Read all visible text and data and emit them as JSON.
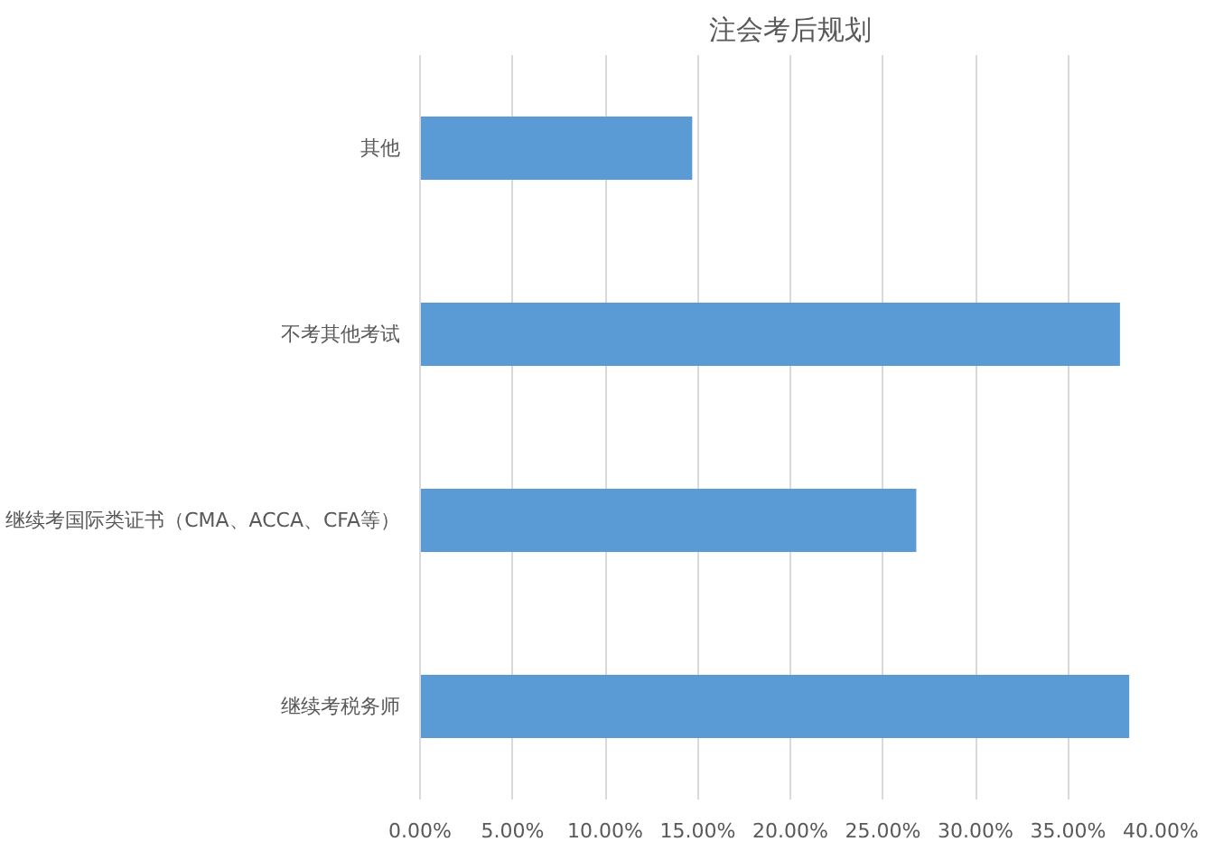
{
  "chart_data": {
    "type": "bar",
    "orientation": "horizontal",
    "title": "注会考后规划",
    "categories": [
      "其他",
      "不考其他考试",
      "继续考国际类证书（CMA、ACCA、CFA等）",
      "继续考税务师"
    ],
    "values": [
      14.7,
      37.8,
      26.8,
      38.3
    ],
    "color": "#5b9bd5",
    "xlim": [
      0,
      40
    ],
    "xticks": [
      {
        "value": 0,
        "label": "0.00%"
      },
      {
        "value": 5,
        "label": "5.00%"
      },
      {
        "value": 10,
        "label": "10.00%"
      },
      {
        "value": 15,
        "label": "15.00%"
      },
      {
        "value": 20,
        "label": "20.00%"
      },
      {
        "value": 25,
        "label": "25.00%"
      },
      {
        "value": 30,
        "label": "30.00%"
      },
      {
        "value": 35,
        "label": "35.00%"
      },
      {
        "value": 40,
        "label": "40.00%"
      }
    ],
    "grid": "x"
  }
}
